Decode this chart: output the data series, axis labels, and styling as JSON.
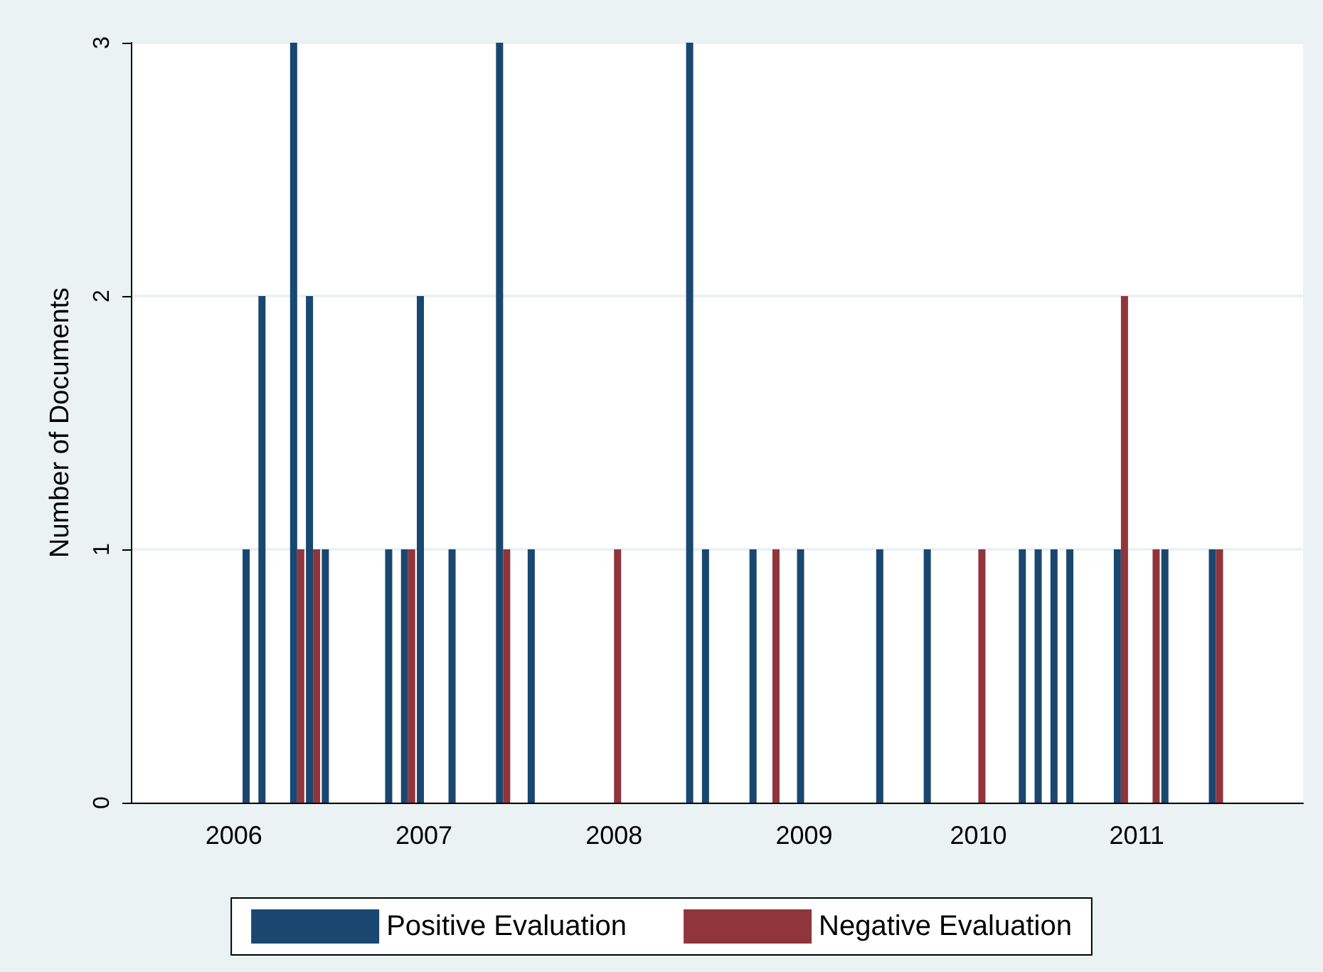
{
  "chart_data": {
    "type": "bar",
    "ylabel": "Number of Documents",
    "categories": [
      null,
      null,
      null,
      null,
      null,
      null,
      "2006",
      null,
      null,
      null,
      null,
      null,
      null,
      null,
      null,
      null,
      null,
      null,
      "2007",
      null,
      null,
      null,
      null,
      null,
      null,
      null,
      null,
      null,
      null,
      null,
      "2008",
      null,
      null,
      null,
      null,
      null,
      null,
      null,
      null,
      null,
      null,
      null,
      "2009",
      null,
      null,
      null,
      null,
      null,
      null,
      null,
      null,
      null,
      null,
      "2010",
      null,
      null,
      null,
      null,
      null,
      null,
      null,
      null,
      null,
      "2011",
      null,
      null,
      null,
      null,
      null,
      null,
      null,
      null,
      null,
      null
    ],
    "ylim": [
      0,
      3
    ],
    "yticks": [
      0,
      1,
      2,
      3
    ],
    "grid": "y",
    "legend": "bottom",
    "series": [
      {
        "name": "Positive Evaluation",
        "color": "#1a476f",
        "values": [
          null,
          null,
          null,
          null,
          null,
          null,
          null,
          1,
          2,
          null,
          3,
          2,
          1,
          null,
          null,
          null,
          1,
          1,
          2,
          null,
          1,
          null,
          null,
          3,
          null,
          1,
          null,
          null,
          null,
          null,
          null,
          null,
          null,
          null,
          null,
          3,
          1,
          null,
          null,
          1,
          null,
          null,
          1,
          null,
          null,
          null,
          null,
          1,
          null,
          null,
          1,
          null,
          null,
          null,
          null,
          null,
          1,
          1,
          1,
          1,
          null,
          null,
          1,
          null,
          null,
          1,
          null,
          null,
          1,
          null,
          null,
          null,
          null,
          null
        ]
      },
      {
        "name": "Negative Evaluation",
        "color": "#90353b",
        "values": [
          null,
          null,
          null,
          null,
          null,
          null,
          null,
          null,
          null,
          null,
          1,
          1,
          null,
          null,
          null,
          null,
          null,
          1,
          null,
          null,
          null,
          null,
          null,
          1,
          null,
          null,
          null,
          null,
          null,
          null,
          1,
          null,
          null,
          null,
          null,
          null,
          null,
          null,
          null,
          null,
          1,
          null,
          null,
          null,
          null,
          null,
          null,
          null,
          null,
          null,
          null,
          null,
          null,
          1,
          null,
          null,
          null,
          null,
          null,
          null,
          null,
          null,
          2,
          null,
          1,
          null,
          null,
          null,
          1,
          null,
          null,
          null,
          null,
          null
        ]
      }
    ]
  }
}
